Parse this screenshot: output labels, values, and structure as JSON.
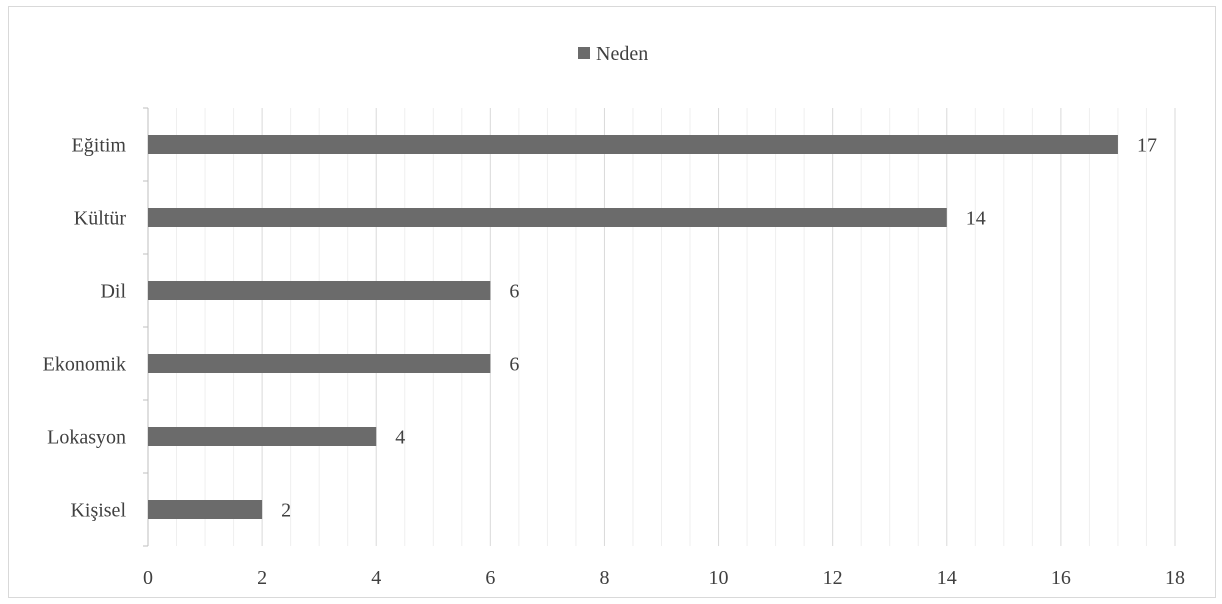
{
  "chart_data": {
    "type": "bar",
    "orientation": "horizontal",
    "categories": [
      "Eğitim",
      "Kültür",
      "Dil",
      "Ekonomik",
      "Lokasyon",
      "Kişisel"
    ],
    "series": [
      {
        "name": "Neden",
        "values": [
          17,
          14,
          6,
          6,
          4,
          2
        ]
      }
    ],
    "xlim": [
      0,
      18
    ],
    "xticks": [
      0,
      2,
      4,
      6,
      8,
      10,
      12,
      14,
      16,
      18
    ],
    "legend_position": "top",
    "grid": true,
    "data_labels": true,
    "bar_color": "#6b6b6b"
  }
}
